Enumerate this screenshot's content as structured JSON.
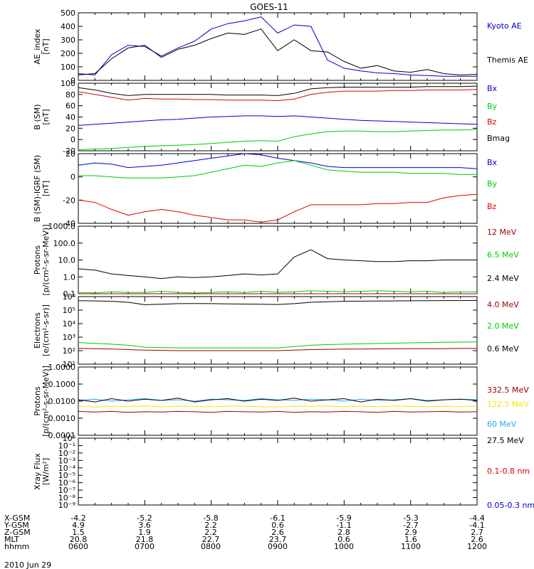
{
  "title": "GOES-11",
  "date_label": "2010 Jun 29",
  "footer_rows": [
    {
      "label": "X-GSM",
      "values": [
        "-4.2",
        "-5.2",
        "-5.8",
        "-6.1",
        "-5.9",
        "-5.3",
        "-4.4"
      ]
    },
    {
      "label": "Y-GSM",
      "values": [
        "4.9",
        "3.6",
        "2.2",
        "0.6",
        "-1.1",
        "-2.7",
        "-4.1"
      ]
    },
    {
      "label": "Z-GSM",
      "values": [
        "1.5",
        "1.9",
        "2.2",
        "2.6",
        "2.8",
        "2.9",
        "2.7"
      ]
    },
    {
      "label": "MLT",
      "values": [
        "20.8",
        "21.8",
        "22.7",
        "23.7",
        "0.6",
        "1.6",
        "2.6"
      ]
    },
    {
      "label": "hhmm",
      "values": [
        "0600",
        "0700",
        "0800",
        "0900",
        "1000",
        "1100",
        "1200"
      ]
    }
  ],
  "colors": {
    "black": "#000000",
    "red": "#dd0000",
    "green": "#00cc00",
    "blue": "#0000cc",
    "dark_red": "#990000",
    "yellow": "#f2e600",
    "cyan": "#22aaee"
  },
  "chart_data": [
    {
      "type": "line",
      "panel": "ae",
      "ylabel": [
        "AE_index",
        "[nT]"
      ],
      "x": [
        6.0,
        6.25,
        6.5,
        6.75,
        7.0,
        7.25,
        7.5,
        7.75,
        8.0,
        8.25,
        8.5,
        8.75,
        9.0,
        9.25,
        9.5,
        9.75,
        10.0,
        10.25,
        10.5,
        10.75,
        11.0,
        11.25,
        11.5,
        11.75,
        12.0
      ],
      "ylim": [
        0,
        500
      ],
      "yticks": [
        "0",
        "100",
        "200",
        "300",
        "400",
        "500"
      ],
      "series": [
        {
          "name": "Kyoto AE",
          "color": "#0000cc",
          "values": [
            50,
            40,
            190,
            260,
            250,
            180,
            240,
            290,
            380,
            420,
            440,
            470,
            350,
            410,
            400,
            150,
            90,
            70,
            55,
            50,
            40,
            35,
            30,
            30,
            30
          ]
        },
        {
          "name": "Themis AE",
          "color": "#000000",
          "values": [
            40,
            50,
            160,
            240,
            260,
            170,
            230,
            260,
            310,
            350,
            340,
            380,
            220,
            300,
            220,
            210,
            140,
            90,
            110,
            70,
            60,
            80,
            50,
            40,
            45
          ]
        }
      ]
    },
    {
      "type": "line",
      "panel": "b",
      "ylabel": [
        "B (SM)",
        "[nT]"
      ],
      "x": [
        6.0,
        6.25,
        6.5,
        6.75,
        7.0,
        7.25,
        7.5,
        7.75,
        8.0,
        8.25,
        8.5,
        8.75,
        9.0,
        9.25,
        9.5,
        9.75,
        10.0,
        10.25,
        10.5,
        10.75,
        11.0,
        11.25,
        11.5,
        11.75,
        12.0
      ],
      "ylim": [
        -20,
        100
      ],
      "yticks": [
        "-20",
        "0",
        "20",
        "40",
        "60",
        "80",
        "100"
      ],
      "series": [
        {
          "name": "Bx",
          "color": "#0000cc",
          "values": [
            25,
            27,
            29,
            31,
            33,
            35,
            36,
            38,
            40,
            41,
            42,
            42,
            41,
            42,
            40,
            38,
            36,
            34,
            33,
            32,
            31,
            30,
            29,
            28,
            27
          ]
        },
        {
          "name": "By",
          "color": "#00cc00",
          "values": [
            -18,
            -17,
            -16,
            -14,
            -12,
            -11,
            -10,
            -9,
            -7,
            -5,
            -3,
            -2,
            -3,
            5,
            10,
            14,
            15,
            15,
            14,
            14,
            15,
            16,
            17,
            17,
            18
          ]
        },
        {
          "name": "Bz",
          "color": "#dd0000",
          "values": [
            85,
            80,
            75,
            70,
            73,
            72,
            72,
            71,
            71,
            70,
            70,
            70,
            69,
            72,
            80,
            84,
            86,
            86,
            86,
            87,
            87,
            88,
            88,
            88,
            89
          ]
        },
        {
          "name": "Bmag",
          "color": "#000000",
          "values": [
            92,
            88,
            82,
            78,
            80,
            80,
            80,
            80,
            80,
            79,
            79,
            79,
            78,
            82,
            90,
            92,
            93,
            93,
            93,
            93,
            93,
            94,
            94,
            94,
            95
          ]
        }
      ]
    },
    {
      "type": "line",
      "panel": "bigrf",
      "ylabel": [
        "B (SM)-IGRF (SM)",
        "[nT]"
      ],
      "x": [
        6.0,
        6.25,
        6.5,
        6.75,
        7.0,
        7.25,
        7.5,
        7.75,
        8.0,
        8.25,
        8.5,
        8.75,
        9.0,
        9.25,
        9.5,
        9.75,
        10.0,
        10.25,
        10.5,
        10.75,
        11.0,
        11.25,
        11.5,
        11.75,
        12.0
      ],
      "ylim": [
        -40,
        20
      ],
      "yticks": [
        "-40",
        "-20",
        "0",
        "20"
      ],
      "series": [
        {
          "name": "Bx",
          "color": "#0000cc",
          "values": [
            10,
            12,
            11,
            8,
            9,
            10,
            12,
            14,
            16,
            18,
            20,
            19,
            16,
            14,
            12,
            9,
            8,
            8,
            8,
            8,
            8,
            8,
            8,
            8,
            7
          ]
        },
        {
          "name": "By",
          "color": "#00cc00",
          "values": [
            1,
            1,
            0,
            -1,
            -1,
            -1,
            0,
            1,
            4,
            7,
            10,
            9,
            12,
            14,
            10,
            6,
            5,
            4,
            4,
            4,
            3,
            3,
            3,
            2,
            2
          ]
        },
        {
          "name": "Bz",
          "color": "#dd0000",
          "values": [
            -20,
            -22,
            -28,
            -33,
            -30,
            -28,
            -30,
            -33,
            -35,
            -37,
            -37,
            -39,
            -37,
            -30,
            -24,
            -24,
            -24,
            -24,
            -23,
            -23,
            -22,
            -22,
            -18,
            -16,
            -15
          ]
        }
      ]
    },
    {
      "type": "line",
      "panel": "protons_low",
      "ylabel": [
        "Protons",
        "[p/(cm²-s-sr-MeV)]"
      ],
      "yscale": "log",
      "x": [
        6.0,
        6.25,
        6.5,
        6.75,
        7.0,
        7.25,
        7.5,
        7.75,
        8.0,
        8.25,
        8.5,
        8.75,
        9.0,
        9.25,
        9.5,
        9.75,
        10.0,
        10.25,
        10.5,
        10.75,
        11.0,
        11.25,
        11.5,
        11.75,
        12.0
      ],
      "ylim": [
        0.1,
        1000
      ],
      "yticks": [
        "0.1",
        "1.0",
        "10.0",
        "100.0",
        "1000.0"
      ],
      "series": [
        {
          "name": "12 MeV",
          "color": "#990000",
          "values": [
            0.1,
            0.1,
            0.1,
            0.1,
            0.1,
            0.1,
            0.1,
            0.1,
            0.1,
            0.1,
            0.1,
            0.1,
            0.1,
            0.1,
            0.1,
            0.1,
            0.1,
            0.1,
            0.1,
            0.1,
            0.1,
            0.1,
            0.1,
            0.1,
            0.1
          ]
        },
        {
          "name": "6.5 MeV",
          "color": "#00cc00",
          "values": [
            0.12,
            0.11,
            0.13,
            0.12,
            0.12,
            0.14,
            0.12,
            0.11,
            0.12,
            0.13,
            0.12,
            0.14,
            0.12,
            0.13,
            0.15,
            0.14,
            0.13,
            0.14,
            0.15,
            0.14,
            0.13,
            0.14,
            0.12,
            0.13,
            0.13
          ]
        },
        {
          "name": "2.4 MeV",
          "color": "#000000",
          "values": [
            3,
            2.5,
            1.5,
            1.2,
            1.0,
            0.8,
            1.0,
            0.9,
            1.0,
            1.2,
            1.5,
            1.3,
            1.5,
            15,
            40,
            12,
            10,
            9,
            8,
            8,
            9,
            9,
            10,
            10,
            10
          ]
        }
      ]
    },
    {
      "type": "line",
      "panel": "electrons",
      "ylabel": [
        "Electrons",
        "[e/(cm²-s-sr)]"
      ],
      "yscale": "log",
      "x": [
        6.0,
        6.25,
        6.5,
        6.75,
        7.0,
        7.25,
        7.5,
        7.75,
        8.0,
        8.25,
        8.5,
        8.75,
        9.0,
        9.25,
        9.5,
        9.75,
        10.0,
        10.25,
        10.5,
        10.75,
        11.0,
        11.25,
        11.5,
        11.75,
        12.0
      ],
      "ylim": [
        10,
        1000000
      ],
      "yticks": [
        "10¹",
        "10²",
        "10³",
        "10⁴",
        "10⁵",
        "10⁶"
      ],
      "series": [
        {
          "name": "4.0 MeV",
          "color": "#990000",
          "values": [
            150,
            140,
            130,
            120,
            110,
            105,
            100,
            100,
            100,
            100,
            100,
            100,
            100,
            110,
            120,
            125,
            130,
            130,
            135,
            135,
            140,
            140,
            140,
            145,
            145
          ]
        },
        {
          "name": "2.0 MeV",
          "color": "#00cc00",
          "values": [
            400,
            350,
            300,
            250,
            180,
            170,
            160,
            160,
            160,
            160,
            160,
            160,
            160,
            200,
            250,
            280,
            300,
            320,
            340,
            360,
            380,
            400,
            420,
            430,
            450
          ]
        },
        {
          "name": "0.6 MeV",
          "color": "#000000",
          "values": [
            500000,
            480000,
            450000,
            380000,
            250000,
            270000,
            300000,
            310000,
            300000,
            290000,
            280000,
            270000,
            260000,
            300000,
            380000,
            420000,
            450000,
            460000,
            470000,
            480000,
            490000,
            500000,
            510000,
            510000,
            520000
          ]
        }
      ]
    },
    {
      "type": "line",
      "panel": "protons_high",
      "ylabel": [
        "Protons",
        "[p/(cm²-s-sr-MeV)]"
      ],
      "yscale": "log",
      "x": [
        6.0,
        6.25,
        6.5,
        6.75,
        7.0,
        7.25,
        7.5,
        7.75,
        8.0,
        8.25,
        8.5,
        8.75,
        9.0,
        9.25,
        9.5,
        9.75,
        10.0,
        10.25,
        10.5,
        10.75,
        11.0,
        11.25,
        11.5,
        11.75,
        12.0
      ],
      "ylim": [
        0.0001,
        1
      ],
      "yticks": [
        "0.0001",
        "0.0010",
        "0.0100",
        "0.1000",
        "1.0000"
      ],
      "series": [
        {
          "name": "332.5 MeV",
          "color": "#990000",
          "values": [
            0.0025,
            0.0023,
            0.0025,
            0.0022,
            0.0024,
            0.0023,
            0.0025,
            0.0024,
            0.0022,
            0.0025,
            0.0024,
            0.0023,
            0.0025,
            0.0022,
            0.0024,
            0.0023,
            0.0025,
            0.0024,
            0.0022,
            0.0025,
            0.0023,
            0.0024,
            0.0025,
            0.0023,
            0.0024
          ]
        },
        {
          "name": "122.5 MeV",
          "color": "#f2e600",
          "values": [
            0.005,
            0.0045,
            0.005,
            0.0048,
            0.0052,
            0.0046,
            0.005,
            0.0049,
            0.0047,
            0.0051,
            0.005,
            0.0048,
            0.0046,
            0.005,
            0.0049,
            0.0052,
            0.0047,
            0.005,
            0.0048,
            0.0051,
            0.0049,
            0.0047,
            0.005,
            0.0048,
            0.005
          ]
        },
        {
          "name": "60 MeV",
          "color": "#22aaee",
          "values": [
            0.011,
            0.013,
            0.01,
            0.012,
            0.014,
            0.011,
            0.012,
            0.01,
            0.013,
            0.012,
            0.011,
            0.014,
            0.012,
            0.011,
            0.013,
            0.012,
            0.01,
            0.013,
            0.011,
            0.012,
            0.014,
            0.011,
            0.012,
            0.013,
            0.012
          ]
        },
        {
          "name": "27.5 MeV",
          "color": "#000000",
          "values": [
            0.012,
            0.009,
            0.014,
            0.01,
            0.013,
            0.011,
            0.015,
            0.009,
            0.012,
            0.014,
            0.01,
            0.013,
            0.011,
            0.015,
            0.01,
            0.012,
            0.014,
            0.009,
            0.013,
            0.011,
            0.014,
            0.01,
            0.012,
            0.013,
            0.011
          ]
        }
      ]
    },
    {
      "type": "line",
      "panel": "xray",
      "ylabel": [
        "Xray Flux",
        "[W/m²]"
      ],
      "yscale": "log",
      "ylim": [
        1e-09,
        1
      ],
      "yticks": [
        "10⁻⁹",
        "10⁻⁸",
        "10⁻⁷",
        "10⁻⁶",
        "10⁻⁵",
        "10⁻⁴",
        "10⁻³",
        "10⁻²",
        "10⁻¹",
        "10⁰"
      ],
      "series": [
        {
          "name": "0.1-0.8 nm",
          "color": "#dd0000",
          "values": []
        },
        {
          "name": "0.05-0.3 nm",
          "color": "#0000cc",
          "values": []
        }
      ]
    }
  ]
}
